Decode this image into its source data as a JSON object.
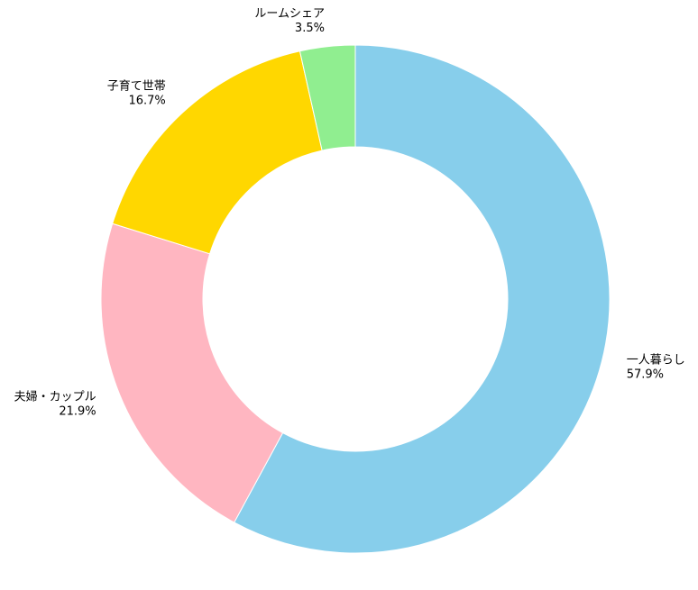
{
  "chart_data": {
    "type": "donut",
    "categories": [
      "一人暮らし",
      "夫婦・カップル",
      "子育て世帯",
      "ルームシェア"
    ],
    "values": [
      57.9,
      21.9,
      16.7,
      3.5
    ],
    "value_labels": [
      "57.9%",
      "21.9%",
      "16.7%",
      "3.5%"
    ],
    "colors": [
      "#87ceeb",
      "#ffb6c1",
      "#ffd700",
      "#90ee90"
    ]
  }
}
